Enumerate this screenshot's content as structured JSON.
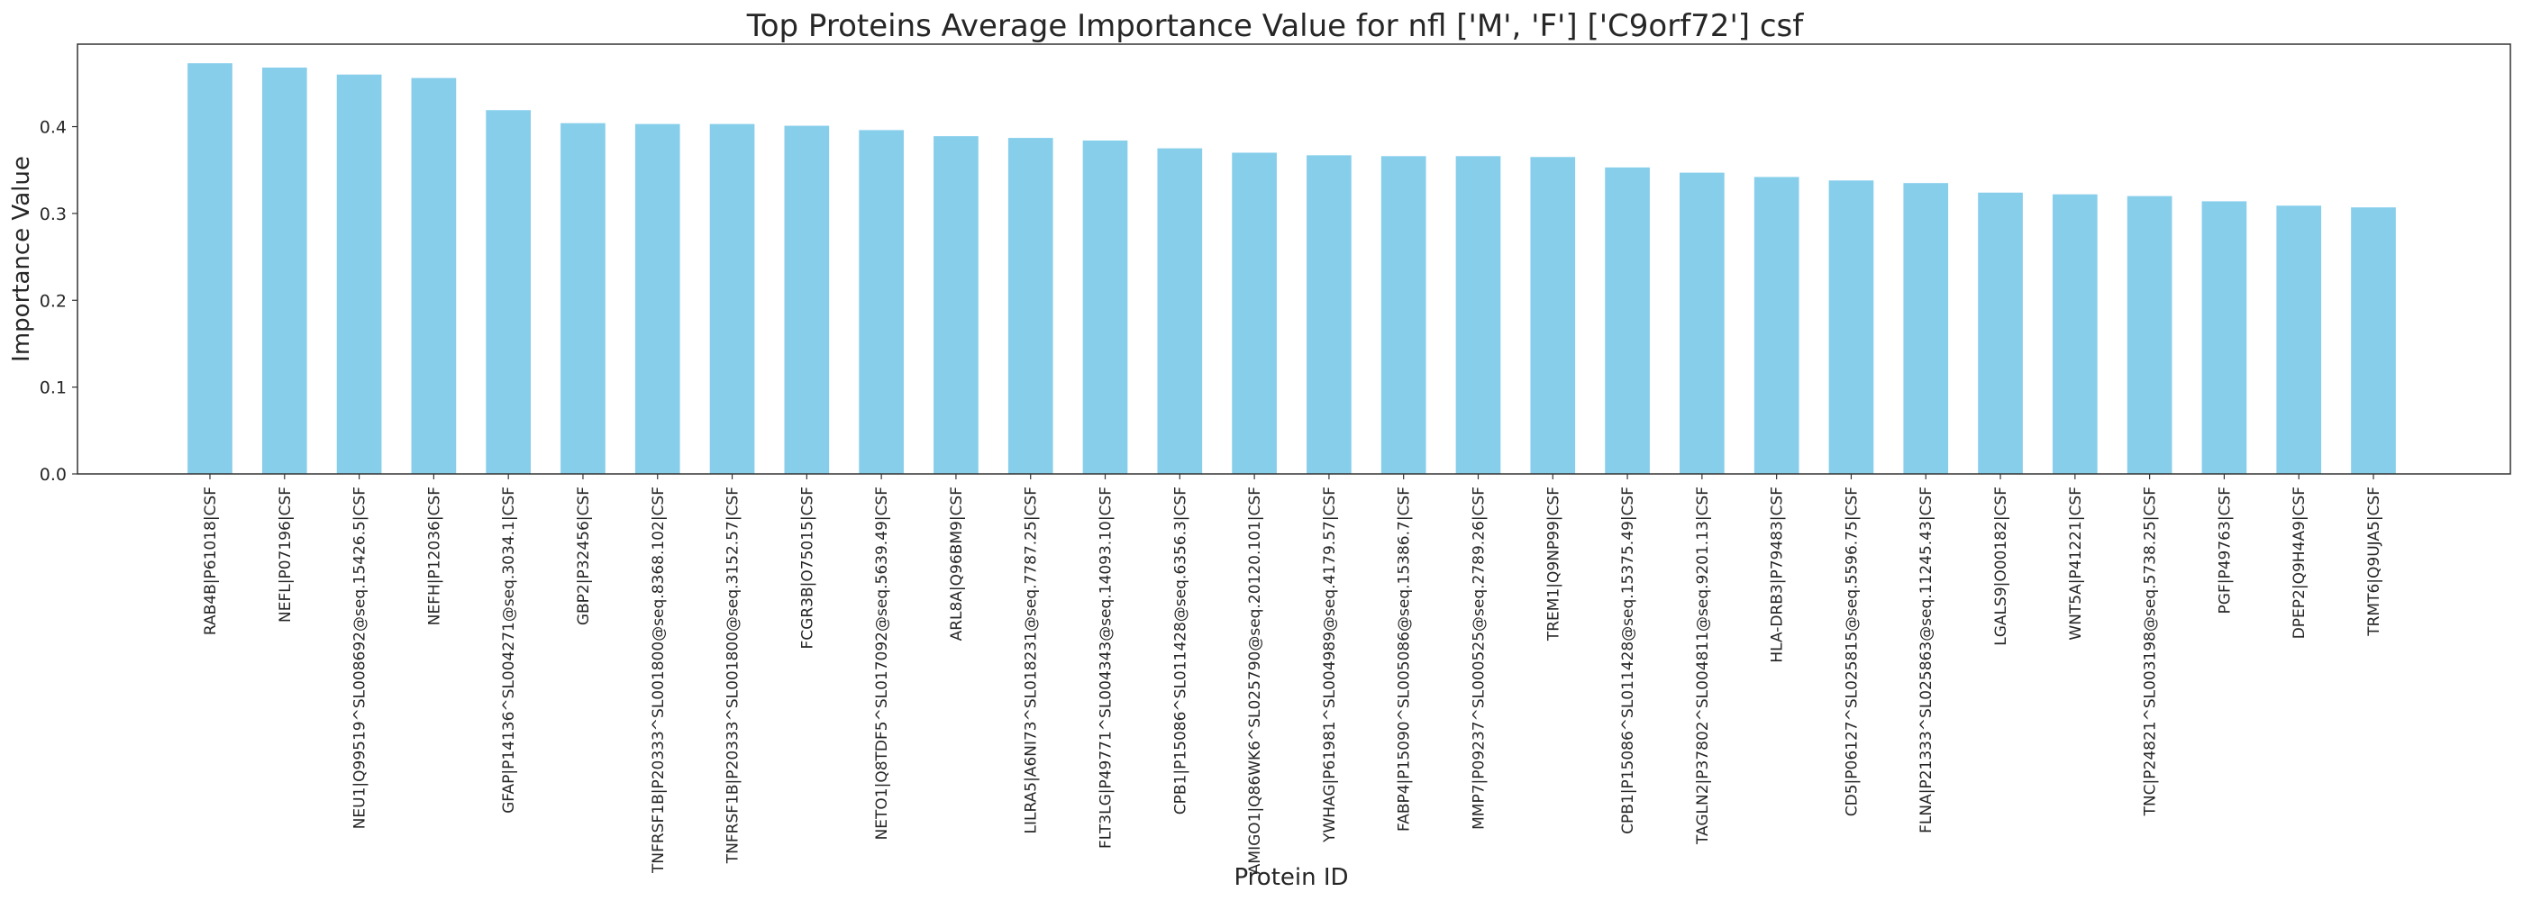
{
  "chart_data": {
    "type": "bar",
    "title": "Top Proteins Average Importance Value for nfl ['M', 'F'] ['C9orf72'] csf",
    "xlabel": "Protein ID",
    "ylabel": "Importance Value",
    "ylim": [
      0,
      0.495
    ],
    "yticks": [
      "0.0",
      "0.1",
      "0.2",
      "0.3",
      "0.4"
    ],
    "grid": false,
    "bar_color": "#87CEEB",
    "categories": [
      "RAB4B|P61018|CSF",
      "NEFL|P07196|CSF",
      "NEU1|Q99519^SL008692@seq.15426.5|CSF",
      "NEFH|P12036|CSF",
      "GFAP|P14136^SL004271@seq.3034.1|CSF",
      "GBP2|P32456|CSF",
      "TNFRSF1B|P20333^SL001800@seq.8368.102|CSF",
      "TNFRSF1B|P20333^SL001800@seq.3152.57|CSF",
      "FCGR3B|O75015|CSF",
      "NETO1|Q8TDF5^SL017092@seq.5639.49|CSF",
      "ARL8A|Q96BM9|CSF",
      "LILRA5|A6NI73^SL018231@seq.7787.25|CSF",
      "FLT3LG|P49771^SL004343@seq.14093.10|CSF",
      "CPB1|P15086^SL011428@seq.6356.3|CSF",
      "AMIGO1|Q86WK6^SL025790@seq.20120.101|CSF",
      "YWHAG|P61981^SL004989@seq.4179.57|CSF",
      "FABP4|P15090^SL005086@seq.15386.7|CSF",
      "MMP7|P09237^SL000525@seq.2789.26|CSF",
      "TREM1|Q9NP99|CSF",
      "CPB1|P15086^SL011428@seq.15375.49|CSF",
      "TAGLN2|P37802^SL004811@seq.9201.13|CSF",
      "HLA-DRB3|P79483|CSF",
      "CD5|P06127^SL025815@seq.5596.75|CSF",
      "FLNA|P21333^SL025863@seq.11245.43|CSF",
      "LGALS9|O00182|CSF",
      "WNT5A|P41221|CSF",
      "TNC|P24821^SL003198@seq.5738.25|CSF",
      "PGF|P49763|CSF",
      "DPEP2|Q9H4A9|CSF",
      "TRMT6|Q9UJA5|CSF"
    ],
    "values": [
      0.473,
      0.468,
      0.46,
      0.456,
      0.419,
      0.404,
      0.403,
      0.403,
      0.401,
      0.396,
      0.389,
      0.387,
      0.384,
      0.375,
      0.37,
      0.367,
      0.366,
      0.366,
      0.365,
      0.353,
      0.347,
      0.342,
      0.338,
      0.335,
      0.324,
      0.322,
      0.32,
      0.314,
      0.309,
      0.307
    ]
  }
}
